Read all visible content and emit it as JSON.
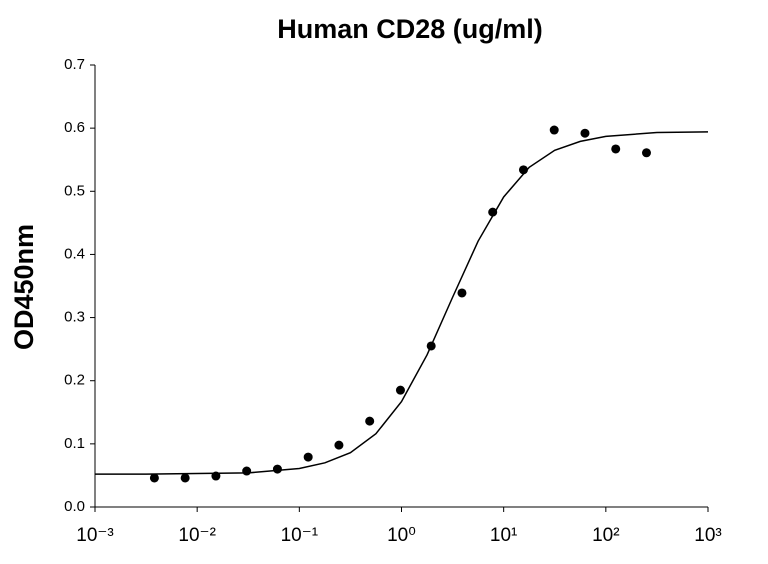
{
  "chart_data": {
    "type": "scatter",
    "title": "Human CD28 (ug/ml)",
    "y_label": "OD450nm",
    "xlog": true,
    "xlim": [
      0.001,
      1000
    ],
    "xticks": [
      {
        "value": 0.001,
        "label": "10⁻³"
      },
      {
        "value": 0.01,
        "label": "10⁻²"
      },
      {
        "value": 0.1,
        "label": "10⁻¹"
      },
      {
        "value": 1,
        "label": "10⁰"
      },
      {
        "value": 10,
        "label": "10¹"
      },
      {
        "value": 100,
        "label": "10²"
      },
      {
        "value": 1000,
        "label": "10³"
      }
    ],
    "ylim": [
      0,
      0.7
    ],
    "yticks": [
      {
        "value": 0,
        "label": "0.0"
      },
      0.1,
      0.2,
      0.3,
      0.4,
      0.5,
      0.6,
      0.7
    ],
    "series": [
      {
        "mode": "markers",
        "color": "#000000",
        "x": [
          0.003814697265625,
          0.00762939453125,
          0.0152587890625,
          0.030517578125,
          0.06103515625,
          0.1220703125,
          0.244140625,
          0.48828125,
          0.9765625,
          1.953125,
          3.90625,
          7.8125,
          15.625,
          31.25,
          62.5,
          125,
          250
        ],
        "values": [
          0.046,
          0.046,
          0.049,
          0.057,
          0.06,
          0.079,
          0.098,
          0.136,
          0.185,
          0.255,
          0.339,
          0.467,
          0.534,
          0.597,
          0.592,
          0.567,
          0.561
        ]
      },
      {
        "mode": "line",
        "color": "#000000",
        "x": [
          0.001,
          0.00316,
          0.01,
          0.0316,
          0.1,
          0.178,
          0.316,
          0.562,
          1,
          1.78,
          3.16,
          5.62,
          10,
          17.8,
          31.6,
          56.2,
          100,
          316,
          1000
        ],
        "values": [
          0.052,
          0.052,
          0.053,
          0.054,
          0.061,
          0.07,
          0.086,
          0.116,
          0.167,
          0.241,
          0.332,
          0.421,
          0.491,
          0.538,
          0.565,
          0.579,
          0.587,
          0.593,
          0.594
        ]
      }
    ]
  }
}
